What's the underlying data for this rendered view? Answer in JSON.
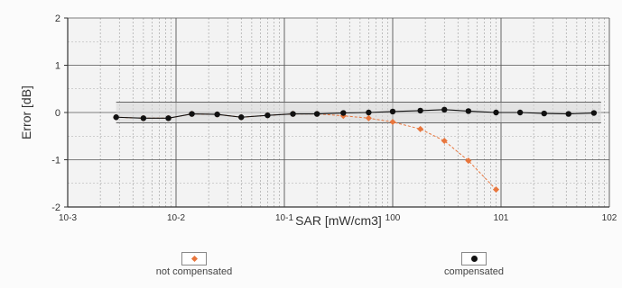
{
  "chart_data": {
    "type": "line",
    "xlabel": "SAR [mW/cm3]",
    "ylabel": "Error [dB]",
    "xscale": "log",
    "xlim": [
      0.001,
      100
    ],
    "ylim": [
      -2,
      2
    ],
    "x_ticks": [
      0.001,
      0.01,
      0.1,
      1,
      10,
      100
    ],
    "x_tick_labels": [
      "10-3",
      "10-2",
      "10-1",
      "100",
      "101",
      "102"
    ],
    "y_ticks": [
      -2,
      -1,
      0,
      1,
      2
    ],
    "y_tick_labels": [
      "-2",
      "-1",
      "0",
      "1",
      "2"
    ],
    "grid": true,
    "legend_position": "bottom",
    "band": [
      -0.22,
      0.22
    ],
    "series": [
      {
        "name": "not compensated",
        "marker": "diamond",
        "color": "#e8763d",
        "x": [
          0.0028,
          0.005,
          0.0085,
          0.014,
          0.024,
          0.04,
          0.07,
          0.12,
          0.2,
          0.35,
          0.6,
          1.0,
          1.8,
          3.0,
          5.0,
          9.0
        ],
        "y": [
          -0.1,
          -0.12,
          -0.12,
          -0.03,
          -0.04,
          -0.1,
          -0.06,
          -0.03,
          -0.03,
          -0.07,
          -0.12,
          -0.2,
          -0.35,
          -0.6,
          -1.02,
          -1.63
        ]
      },
      {
        "name": "compensated",
        "marker": "dot",
        "color": "#111111",
        "x": [
          0.0028,
          0.005,
          0.0085,
          0.014,
          0.024,
          0.04,
          0.07,
          0.12,
          0.2,
          0.35,
          0.6,
          1.0,
          1.8,
          3.0,
          5.0,
          9.0,
          15,
          25,
          42,
          72
        ],
        "y": [
          -0.1,
          -0.12,
          -0.12,
          -0.03,
          -0.04,
          -0.1,
          -0.06,
          -0.03,
          -0.03,
          -0.01,
          0.0,
          0.02,
          0.04,
          0.06,
          0.03,
          0.0,
          0.0,
          -0.02,
          -0.03,
          -0.01
        ]
      }
    ]
  }
}
